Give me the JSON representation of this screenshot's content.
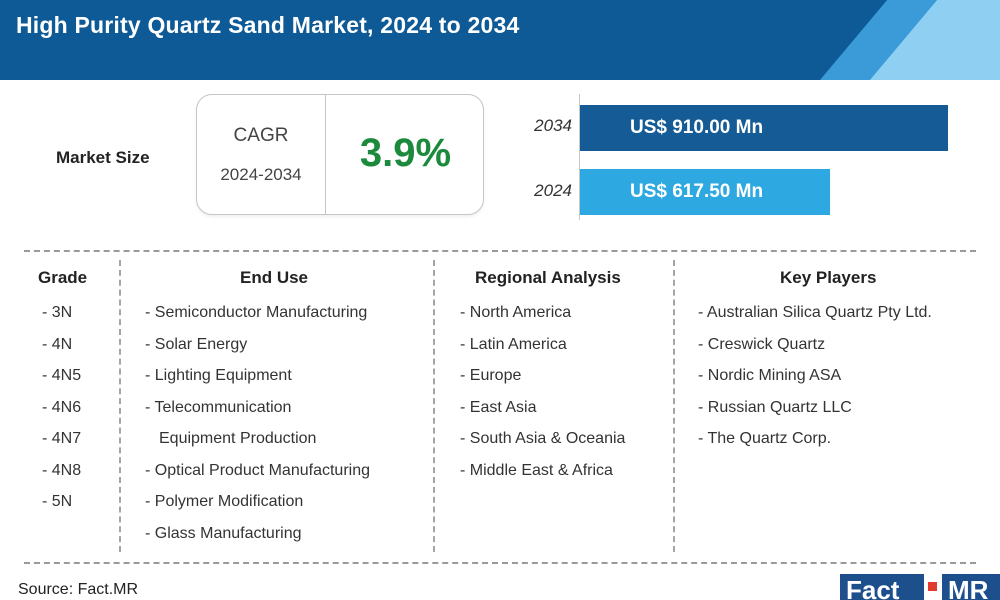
{
  "header": {
    "title": "High Purity Quartz Sand Market, 2024 to 2034",
    "colors": {
      "dark": "#0e5a96",
      "mid": "#3a9bd8",
      "light": "#8fd0f2"
    }
  },
  "market_size": {
    "label": "Market Size",
    "cagr_label": "CAGR",
    "cagr_period": "2024-2034",
    "cagr_value": "3.9%",
    "cagr_color": "#1b8a3c",
    "bars": [
      {
        "year": "2034",
        "value_text": "US$ 910.00 Mn",
        "value": 910.0,
        "color": "#155b95"
      },
      {
        "year": "2024",
        "value_text": "US$ 617.50 Mn",
        "value": 617.5,
        "color": "#2ea8e0"
      }
    ]
  },
  "segments": {
    "grade": {
      "heading": "Grade",
      "items": [
        "- 3N",
        "- 4N",
        "- 4N5",
        "- 4N6",
        "- 4N7",
        "- 4N8",
        "- 5N"
      ]
    },
    "end_use": {
      "heading": "End Use",
      "items": [
        "- Semiconductor Manufacturing",
        "- Solar Energy",
        "- Lighting Equipment",
        "- Telecommunication",
        "Equipment Production",
        "- Optical Product Manufacturing",
        "- Polymer Modification",
        "- Glass Manufacturing"
      ]
    },
    "regional": {
      "heading": "Regional Analysis",
      "items": [
        "- North America",
        "- Latin America",
        "- Europe",
        "- East Asia",
        "- South Asia & Oceania",
        "- Middle East & Africa"
      ]
    },
    "key_players": {
      "heading": "Key Players",
      "items": [
        "- Australian Silica Quartz Pty Ltd.",
        "- Creswick Quartz",
        "- Nordic Mining ASA",
        "- Russian Quartz LLC",
        "- The Quartz Corp."
      ]
    }
  },
  "footer": {
    "source": "Source: Fact.MR",
    "logo_fact": "Fact",
    "logo_mr": "MR",
    "logo_colors": {
      "box": "#1d4f8c",
      "dot": "#e23a2e"
    }
  }
}
